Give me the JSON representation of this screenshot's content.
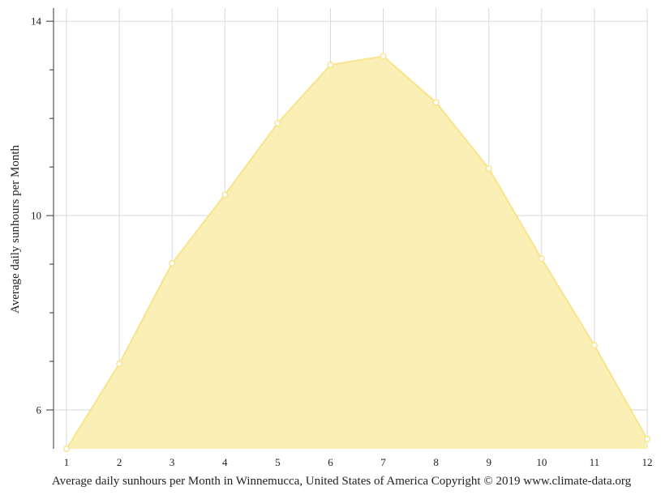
{
  "chart_data": {
    "type": "area",
    "x": [
      1,
      2,
      3,
      4,
      5,
      6,
      7,
      8,
      9,
      10,
      11,
      12
    ],
    "values": [
      5.2,
      6.95,
      9.02,
      10.43,
      11.9,
      13.1,
      13.28,
      12.33,
      10.97,
      9.11,
      7.33,
      5.4
    ],
    "xlabel": "",
    "ylabel": "Average daily sunhours per Month",
    "caption": "Average daily sunhours per Month in Winnemucca, United States of America Copyright © 2019 www.climate-data.org",
    "xlim": [
      1,
      12
    ],
    "ylim": [
      5.2,
      14.27
    ],
    "y_major_ticks": [
      6,
      10,
      14
    ],
    "y_minor_step": 1,
    "grid": true,
    "colors": {
      "fill": "#faeeb0",
      "line": "#f7e48c",
      "marker": "#ffffff",
      "grid": "#d9d9d9"
    }
  }
}
